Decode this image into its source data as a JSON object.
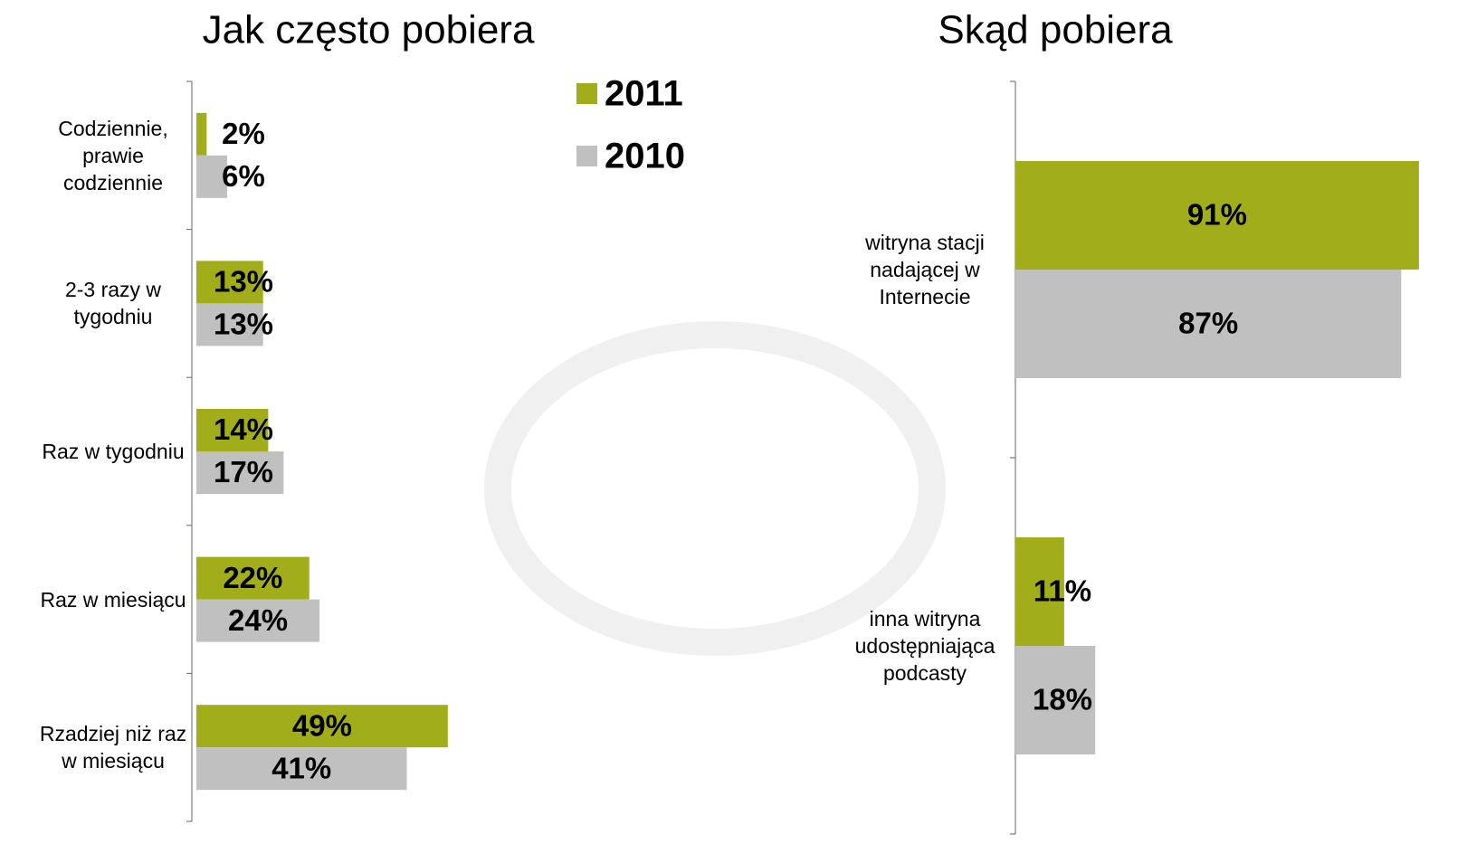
{
  "chart_data": [
    {
      "type": "hbar",
      "title": "Jak często pobiera",
      "categories": [
        "Codziennie,\nprawie\ncodziennie",
        "2-3 razy w\ntygodniu",
        "Raz w tygodniu",
        "Raz w miesiącu",
        "Rzadziej niż raz\nw miesiącu"
      ],
      "series": [
        {
          "name": "2011",
          "color": "#a2ad1a",
          "values": [
            2,
            13,
            14,
            22,
            49
          ],
          "value_labels": [
            "2%",
            "13%",
            "14%",
            "22%",
            "49%"
          ]
        },
        {
          "name": "2010",
          "color": "#c0c0c0",
          "values": [
            6,
            13,
            17,
            24,
            41
          ],
          "value_labels": [
            "6%",
            "13%",
            "17%",
            "24%",
            "41%"
          ]
        }
      ]
    },
    {
      "type": "hbar",
      "title": "Skąd pobiera",
      "categories": [
        "witryna stacji\nnadającej w\nInternecie",
        "inna witryna\nudostępniająca\npodcasty"
      ],
      "series": [
        {
          "name": "2011",
          "color": "#a2ad1a",
          "values": [
            91,
            11
          ],
          "value_labels": [
            "91%",
            "11%"
          ]
        },
        {
          "name": "2010",
          "color": "#c0c0c0",
          "values": [
            87,
            18
          ],
          "value_labels": [
            "87%",
            "18%"
          ]
        }
      ]
    }
  ]
}
